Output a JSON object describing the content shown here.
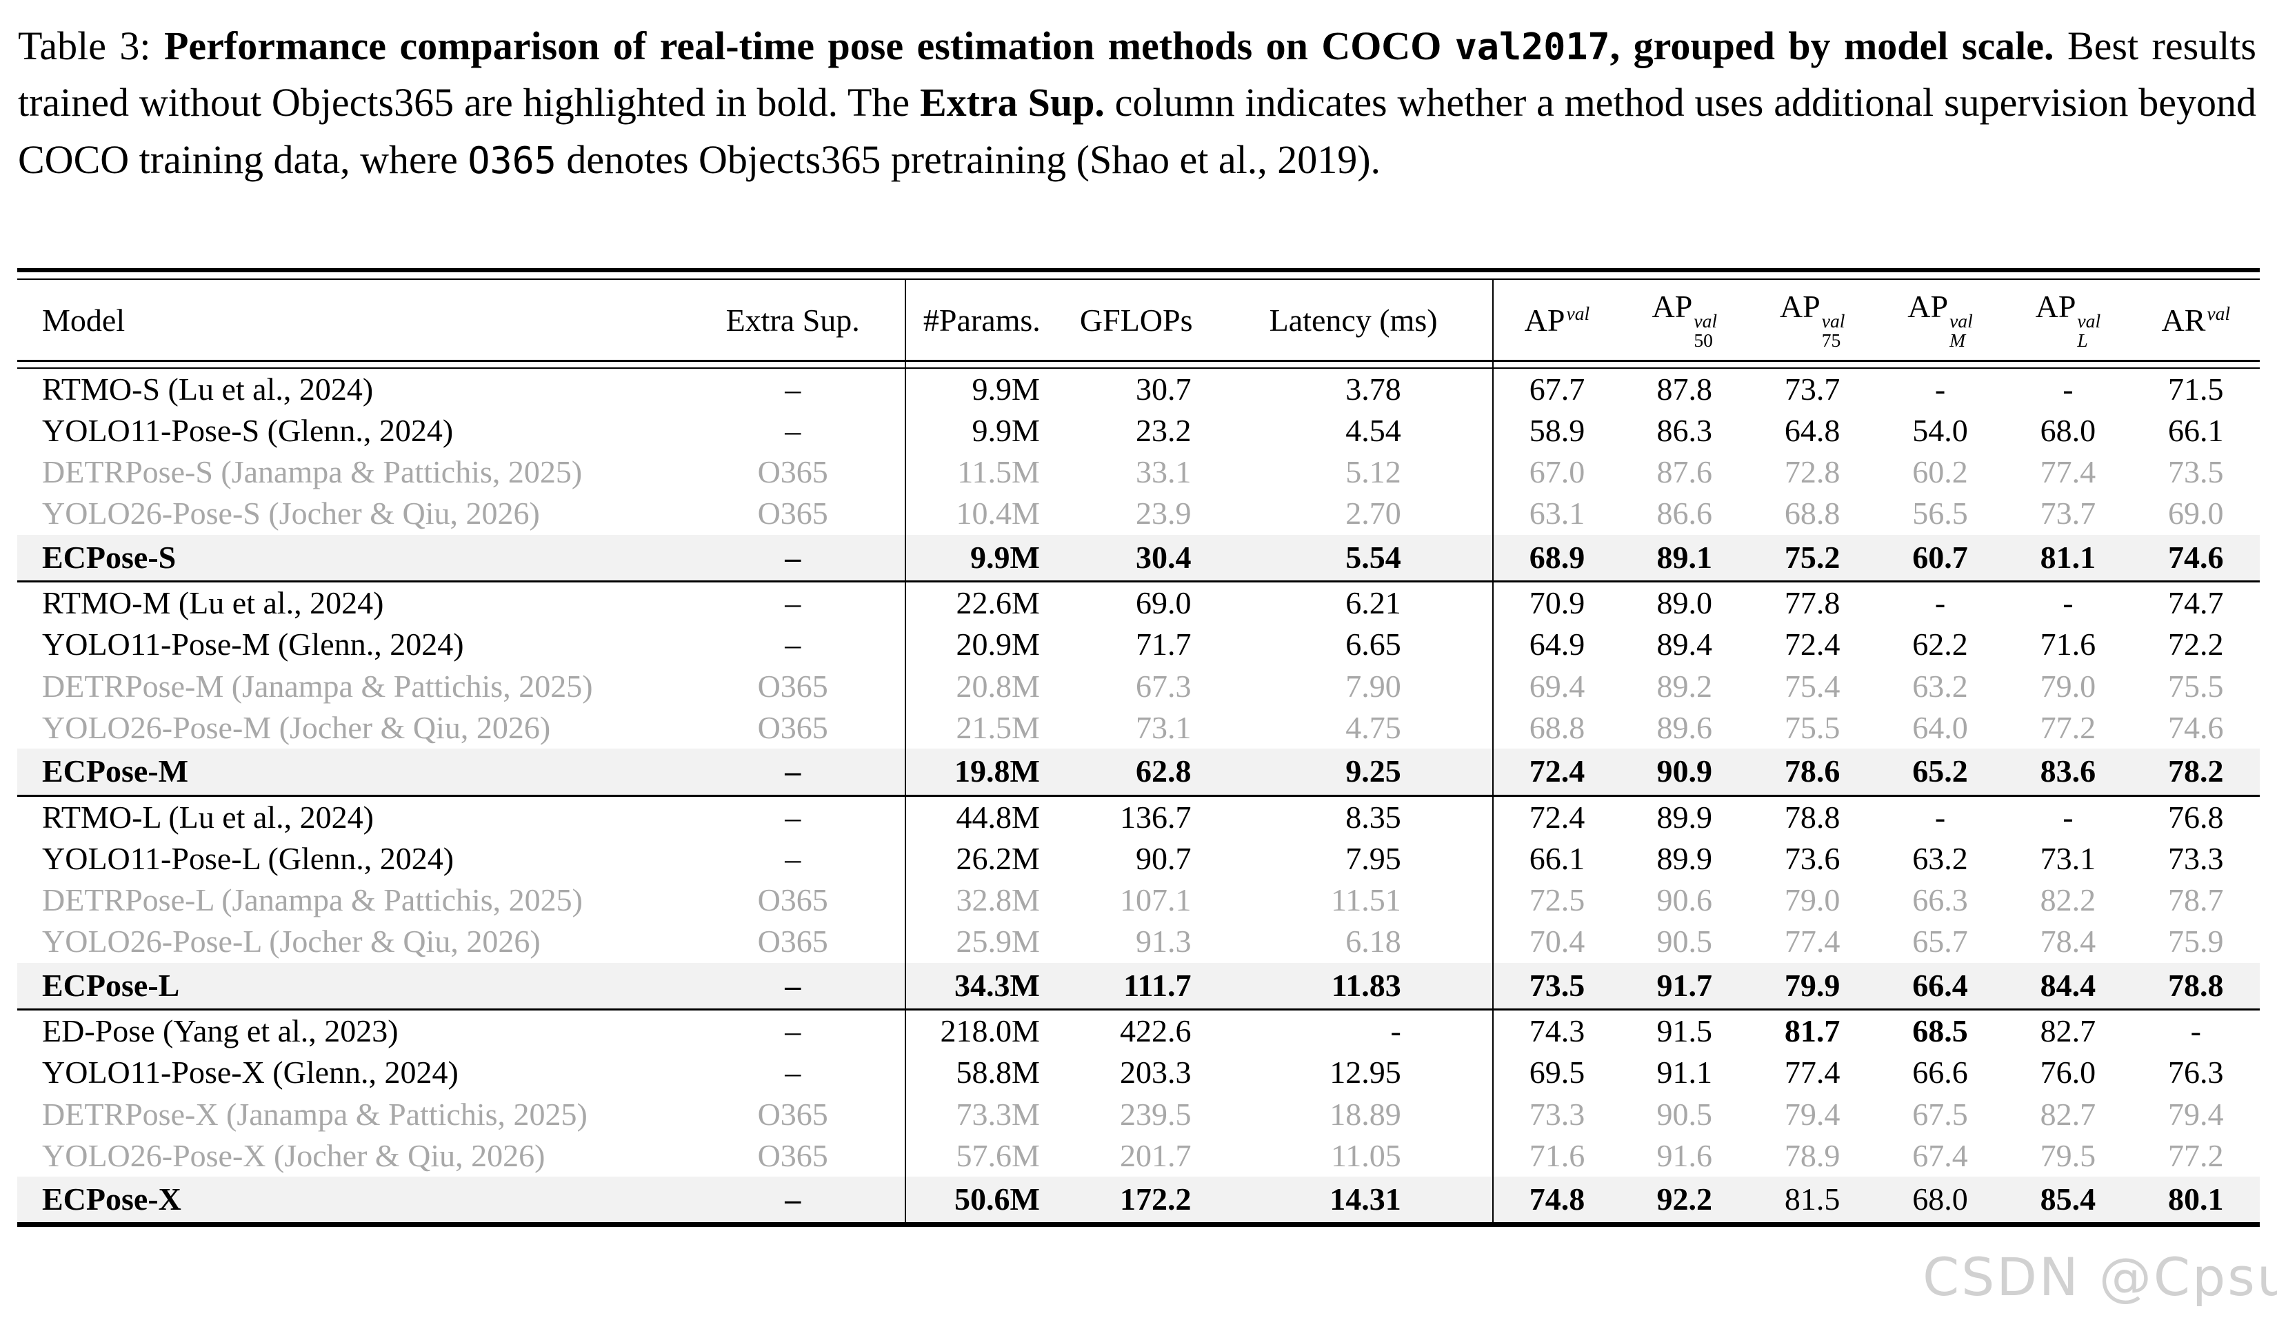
{
  "caption": {
    "segments": [
      {
        "text": "Table 3: ",
        "bold": false,
        "mono": false
      },
      {
        "text": "Performance comparison of real-time pose estimation methods on COCO ",
        "bold": true,
        "mono": false
      },
      {
        "text": "val2017",
        "bold": true,
        "mono": true
      },
      {
        "text": ", grouped by model scale.",
        "bold": true,
        "mono": false
      },
      {
        "text": " Best results trained without Objects365 are highlighted in bold. The ",
        "bold": false,
        "mono": false
      },
      {
        "text": "Extra Sup.",
        "bold": true,
        "mono": false
      },
      {
        "text": " column indicates whether a method uses additional supervision beyond COCO training data, where ",
        "bold": false,
        "mono": false
      },
      {
        "text": "O365",
        "bold": false,
        "mono": true
      },
      {
        "text": " denotes Objects365 pretraining (Shao et al., 2019).",
        "bold": false,
        "mono": false
      }
    ]
  },
  "table": {
    "columns": [
      {
        "key": "model",
        "label": "Model",
        "align": "left",
        "sep": false
      },
      {
        "key": "extra-sup",
        "label": "Extra Sup.",
        "align": "center",
        "sep": true
      },
      {
        "key": "params",
        "label": "#Params.",
        "align": "right",
        "sep": false
      },
      {
        "key": "gflops",
        "label": "GFLOPs",
        "align": "right",
        "sep": false
      },
      {
        "key": "latency",
        "label": "Latency (ms)",
        "align": "right",
        "sep": true
      },
      {
        "key": "ap",
        "base": "AP",
        "sup": "val",
        "align": "center",
        "sep": false
      },
      {
        "key": "ap50",
        "base": "AP",
        "sup": "val",
        "sub": "50",
        "align": "center",
        "sep": false
      },
      {
        "key": "ap75",
        "base": "AP",
        "sup": "val",
        "sub": "75",
        "align": "center",
        "sep": false
      },
      {
        "key": "apm",
        "base": "AP",
        "sup": "val",
        "sub": "M",
        "sub_italic": true,
        "align": "center",
        "sep": false
      },
      {
        "key": "apl",
        "base": "AP",
        "sup": "val",
        "sub": "L",
        "sub_italic": true,
        "align": "center",
        "sep": false
      },
      {
        "key": "ar",
        "base": "AR",
        "sup": "val",
        "align": "center",
        "sep": false
      }
    ],
    "groups": [
      {
        "rows": [
          {
            "cells": [
              "RTMO-S (Lu et al., 2024)",
              "–",
              "9.9M",
              "30.7",
              "3.78",
              "67.7",
              "87.8",
              "73.7",
              "-",
              "-",
              "71.5"
            ],
            "muted": false,
            "highlight": false,
            "bold_cols": []
          },
          {
            "cells": [
              "YOLO11-Pose-S (Glenn., 2024)",
              "–",
              "9.9M",
              "23.2",
              "4.54",
              "58.9",
              "86.3",
              "64.8",
              "54.0",
              "68.0",
              "66.1"
            ],
            "muted": false,
            "highlight": false,
            "bold_cols": []
          },
          {
            "cells": [
              "DETRPose-S (Janampa & Pattichis, 2025)",
              "O365",
              "11.5M",
              "33.1",
              "5.12",
              "67.0",
              "87.6",
              "72.8",
              "60.2",
              "77.4",
              "73.5"
            ],
            "muted": true,
            "highlight": false,
            "bold_cols": []
          },
          {
            "cells": [
              "YOLO26-Pose-S (Jocher & Qiu, 2026)",
              "O365",
              "10.4M",
              "23.9",
              "2.70",
              "63.1",
              "86.6",
              "68.8",
              "56.5",
              "73.7",
              "69.0"
            ],
            "muted": true,
            "highlight": false,
            "bold_cols": []
          },
          {
            "cells": [
              "ECPose-S",
              "–",
              "9.9M",
              "30.4",
              "5.54",
              "68.9",
              "89.1",
              "75.2",
              "60.7",
              "81.1",
              "74.6"
            ],
            "muted": false,
            "highlight": true,
            "bold_cols": [
              0,
              1,
              2,
              3,
              4,
              5,
              6,
              7,
              8,
              9,
              10
            ]
          }
        ]
      },
      {
        "rows": [
          {
            "cells": [
              "RTMO-M (Lu et al., 2024)",
              "–",
              "22.6M",
              "69.0",
              "6.21",
              "70.9",
              "89.0",
              "77.8",
              "-",
              "-",
              "74.7"
            ],
            "muted": false,
            "highlight": false,
            "bold_cols": []
          },
          {
            "cells": [
              "YOLO11-Pose-M (Glenn., 2024)",
              "–",
              "20.9M",
              "71.7",
              "6.65",
              "64.9",
              "89.4",
              "72.4",
              "62.2",
              "71.6",
              "72.2"
            ],
            "muted": false,
            "highlight": false,
            "bold_cols": []
          },
          {
            "cells": [
              "DETRPose-M (Janampa & Pattichis, 2025)",
              "O365",
              "20.8M",
              "67.3",
              "7.90",
              "69.4",
              "89.2",
              "75.4",
              "63.2",
              "79.0",
              "75.5"
            ],
            "muted": true,
            "highlight": false,
            "bold_cols": []
          },
          {
            "cells": [
              "YOLO26-Pose-M (Jocher & Qiu, 2026)",
              "O365",
              "21.5M",
              "73.1",
              "4.75",
              "68.8",
              "89.6",
              "75.5",
              "64.0",
              "77.2",
              "74.6"
            ],
            "muted": true,
            "highlight": false,
            "bold_cols": []
          },
          {
            "cells": [
              "ECPose-M",
              "–",
              "19.8M",
              "62.8",
              "9.25",
              "72.4",
              "90.9",
              "78.6",
              "65.2",
              "83.6",
              "78.2"
            ],
            "muted": false,
            "highlight": true,
            "bold_cols": [
              0,
              1,
              2,
              3,
              4,
              5,
              6,
              7,
              8,
              9,
              10
            ]
          }
        ]
      },
      {
        "rows": [
          {
            "cells": [
              "RTMO-L (Lu et al., 2024)",
              "–",
              "44.8M",
              "136.7",
              "8.35",
              "72.4",
              "89.9",
              "78.8",
              "-",
              "-",
              "76.8"
            ],
            "muted": false,
            "highlight": false,
            "bold_cols": []
          },
          {
            "cells": [
              "YOLO11-Pose-L (Glenn., 2024)",
              "–",
              "26.2M",
              "90.7",
              "7.95",
              "66.1",
              "89.9",
              "73.6",
              "63.2",
              "73.1",
              "73.3"
            ],
            "muted": false,
            "highlight": false,
            "bold_cols": []
          },
          {
            "cells": [
              "DETRPose-L (Janampa & Pattichis, 2025)",
              "O365",
              "32.8M",
              "107.1",
              "11.51",
              "72.5",
              "90.6",
              "79.0",
              "66.3",
              "82.2",
              "78.7"
            ],
            "muted": true,
            "highlight": false,
            "bold_cols": []
          },
          {
            "cells": [
              "YOLO26-Pose-L (Jocher & Qiu, 2026)",
              "O365",
              "25.9M",
              "91.3",
              "6.18",
              "70.4",
              "90.5",
              "77.4",
              "65.7",
              "78.4",
              "75.9"
            ],
            "muted": true,
            "highlight": false,
            "bold_cols": []
          },
          {
            "cells": [
              "ECPose-L",
              "–",
              "34.3M",
              "111.7",
              "11.83",
              "73.5",
              "91.7",
              "79.9",
              "66.4",
              "84.4",
              "78.8"
            ],
            "muted": false,
            "highlight": true,
            "bold_cols": [
              0,
              1,
              2,
              3,
              4,
              5,
              6,
              7,
              8,
              9,
              10
            ]
          }
        ]
      },
      {
        "rows": [
          {
            "cells": [
              "ED-Pose (Yang et al., 2023)",
              "–",
              "218.0M",
              "422.6",
              "-",
              "74.3",
              "91.5",
              "81.7",
              "68.5",
              "82.7",
              "-"
            ],
            "muted": false,
            "highlight": false,
            "bold_cols": [
              7,
              8
            ]
          },
          {
            "cells": [
              "YOLO11-Pose-X (Glenn., 2024)",
              "–",
              "58.8M",
              "203.3",
              "12.95",
              "69.5",
              "91.1",
              "77.4",
              "66.6",
              "76.0",
              "76.3"
            ],
            "muted": false,
            "highlight": false,
            "bold_cols": []
          },
          {
            "cells": [
              "DETRPose-X (Janampa & Pattichis, 2025)",
              "O365",
              "73.3M",
              "239.5",
              "18.89",
              "73.3",
              "90.5",
              "79.4",
              "67.5",
              "82.7",
              "79.4"
            ],
            "muted": true,
            "highlight": false,
            "bold_cols": []
          },
          {
            "cells": [
              "YOLO26-Pose-X (Jocher & Qiu, 2026)",
              "O365",
              "57.6M",
              "201.7",
              "11.05",
              "71.6",
              "91.6",
              "78.9",
              "67.4",
              "79.5",
              "77.2"
            ],
            "muted": true,
            "highlight": false,
            "bold_cols": []
          },
          {
            "cells": [
              "ECPose-X",
              "–",
              "50.6M",
              "172.2",
              "14.31",
              "74.8",
              "92.2",
              "81.5",
              "68.0",
              "85.4",
              "80.1"
            ],
            "muted": false,
            "highlight": true,
            "bold_cols": [
              0,
              1,
              2,
              3,
              4,
              5,
              6,
              9,
              10
            ]
          }
        ]
      }
    ]
  },
  "watermark": {
    "text": "CSDN @Cpsu"
  },
  "colors": {
    "text": "#000000",
    "muted_text": "#a8a8a8",
    "highlight_row_bg": "#f2f2f2",
    "rule": "#000000",
    "watermark": "#acacac"
  }
}
